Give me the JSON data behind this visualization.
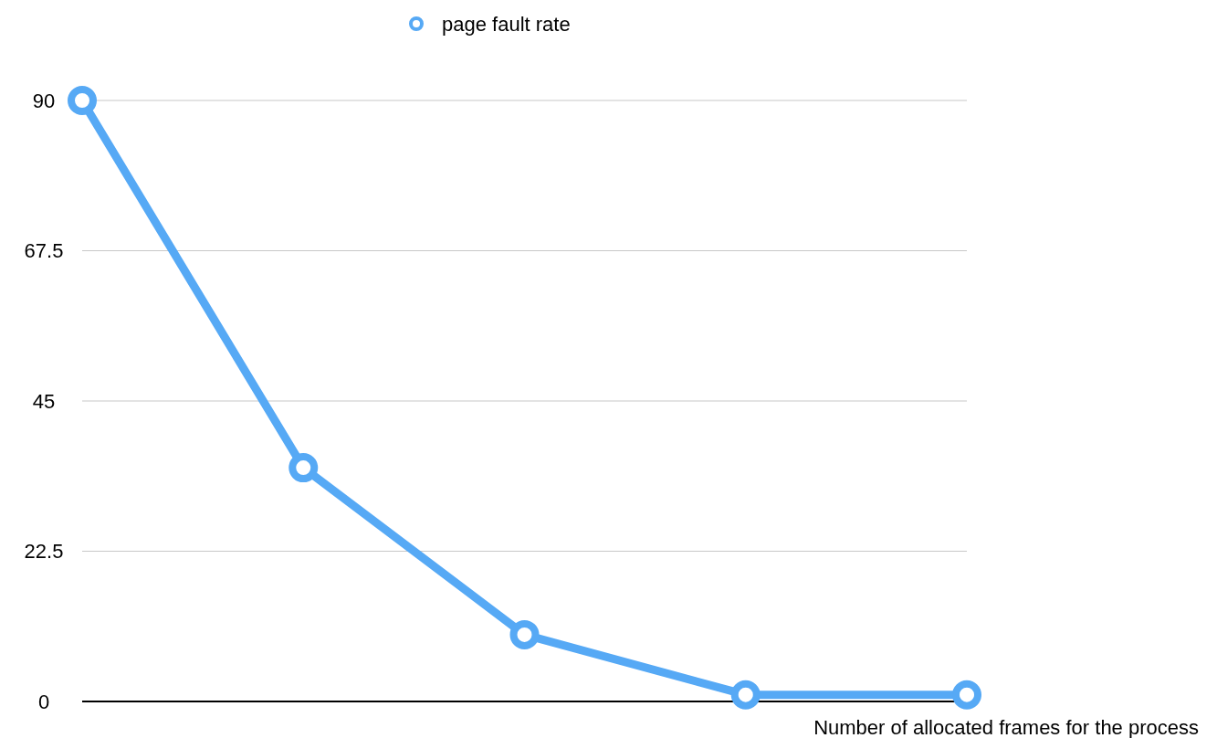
{
  "chart_data": {
    "type": "line",
    "xlabel": "Number of allocated frames for the process",
    "categories": [
      null,
      null,
      null,
      null,
      null
    ],
    "series": [
      {
        "name": "page fault rate",
        "color": "#56a9f5",
        "values": [
          90,
          35,
          10,
          1,
          1
        ]
      }
    ],
    "ylim": [
      0,
      90
    ],
    "yticks": [
      0,
      22.5,
      45,
      67.5,
      90
    ],
    "grid": "y",
    "legend": "top",
    "marker": "circle",
    "line_style": "solid"
  }
}
